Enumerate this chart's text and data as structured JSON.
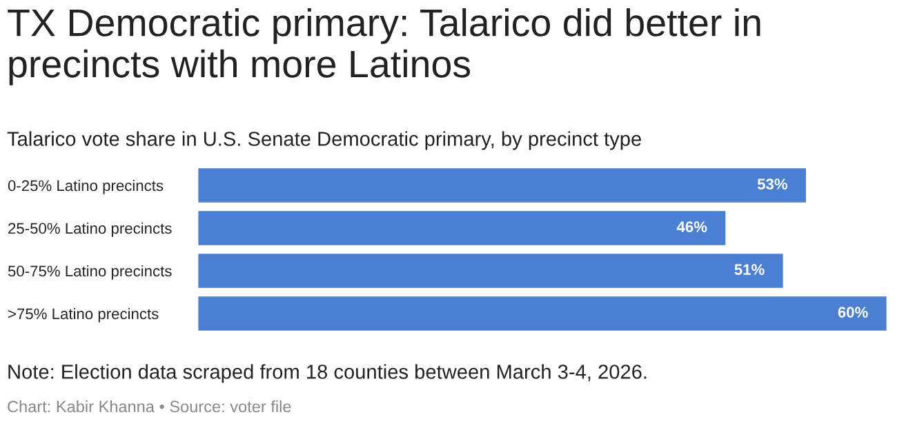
{
  "chart_data": {
    "type": "bar",
    "orientation": "horizontal",
    "title": "TX Democratic primary: Talarico did better in precincts with more Latinos",
    "subtitle": "Talarico vote share in U.S. Senate Democratic primary, by precinct type",
    "categories": [
      "0-25% Latino precincts",
      "25-50% Latino precincts",
      "50-75% Latino precincts",
      ">75% Latino precincts"
    ],
    "values": [
      53,
      46,
      51,
      60
    ],
    "value_labels": [
      "53%",
      "46%",
      "51%",
      "60%"
    ],
    "color": "#4a7fd1",
    "xlim": [
      0,
      60
    ],
    "tick_labels": "y",
    "grid": false,
    "legend": false,
    "annotations": [
      "Note: Election data scraped from 18 counties between March 3-4, 2026.",
      "Chart: Kabir Khanna • Source: voter file"
    ]
  }
}
